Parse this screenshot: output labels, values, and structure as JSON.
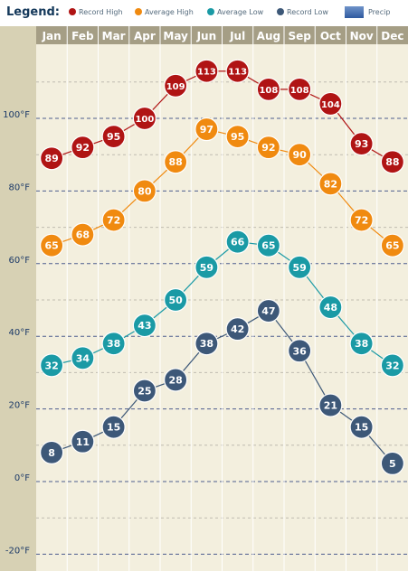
{
  "legend": {
    "title": "Legend:",
    "items": [
      {
        "label": "Record High",
        "color": "#b01414"
      },
      {
        "label": "Average High",
        "color": "#f08a10"
      },
      {
        "label": "Average Low",
        "color": "#1a9aa5"
      },
      {
        "label": "Record Low",
        "color": "#3d5878"
      },
      {
        "label": "Precip",
        "color": "#3a65a8"
      }
    ]
  },
  "chart_data": {
    "type": "line",
    "categories": [
      "Jan",
      "Feb",
      "Mar",
      "Apr",
      "May",
      "Jun",
      "Jul",
      "Aug",
      "Sep",
      "Oct",
      "Nov",
      "Dec"
    ],
    "series": [
      {
        "name": "Record High",
        "color": "#b01414",
        "values": [
          89,
          92,
          95,
          100,
          109,
          113,
          113,
          108,
          108,
          104,
          93,
          88
        ]
      },
      {
        "name": "Average High",
        "color": "#f08a10",
        "values": [
          65,
          68,
          72,
          80,
          88,
          97,
          95,
          92,
          90,
          82,
          72,
          65
        ]
      },
      {
        "name": "Average Low",
        "color": "#1a9aa5",
        "values": [
          32,
          34,
          38,
          43,
          50,
          59,
          66,
          65,
          59,
          48,
          38,
          32
        ]
      },
      {
        "name": "Record Low",
        "color": "#3d5878",
        "values": [
          8,
          11,
          15,
          25,
          28,
          38,
          42,
          47,
          36,
          21,
          15,
          5
        ]
      }
    ],
    "y_ticks": [
      "100°F",
      "80°F",
      "60°F",
      "40°F",
      "20°F",
      "0°F",
      "-20°F"
    ],
    "y_tick_values": [
      100,
      80,
      60,
      40,
      20,
      0,
      -20
    ],
    "ylim": [
      -20,
      122
    ],
    "grid": true,
    "legend_position": "top"
  }
}
